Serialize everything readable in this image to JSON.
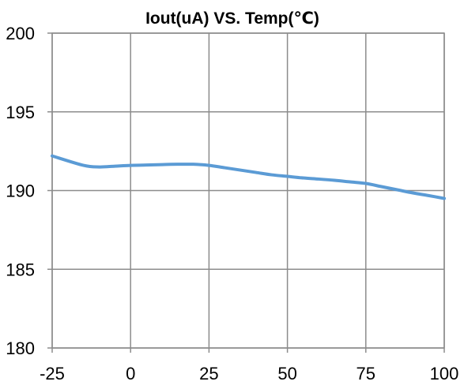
{
  "chart_data": {
    "type": "line",
    "title": "Iout(uA) VS. Temp(℃)",
    "xlabel": "",
    "ylabel": "",
    "x_ticks": [
      -25,
      0,
      25,
      50,
      75,
      100
    ],
    "y_ticks": [
      180,
      185,
      190,
      195,
      200
    ],
    "xlim": [
      -25,
      100
    ],
    "ylim": [
      180,
      200
    ],
    "grid": true,
    "legend": "none",
    "series": [
      {
        "x": [
          -25,
          -15,
          -10,
          -5,
          0,
          5,
          10,
          15,
          20,
          25,
          30,
          35,
          40,
          45,
          50,
          55,
          60,
          65,
          70,
          75,
          80,
          85,
          90,
          95,
          100
        ],
        "y": [
          192.2,
          191.6,
          191.5,
          191.55,
          191.6,
          191.62,
          191.65,
          191.67,
          191.67,
          191.6,
          191.45,
          191.3,
          191.15,
          191.0,
          190.9,
          190.8,
          190.73,
          190.65,
          190.55,
          190.45,
          190.25,
          190.05,
          189.85,
          189.68,
          189.5
        ],
        "color": "#5b9bd5"
      }
    ],
    "colors": {
      "grid": "#8c8c8c",
      "axis": "#8c8c8c",
      "line": "#5b9bd5"
    }
  }
}
